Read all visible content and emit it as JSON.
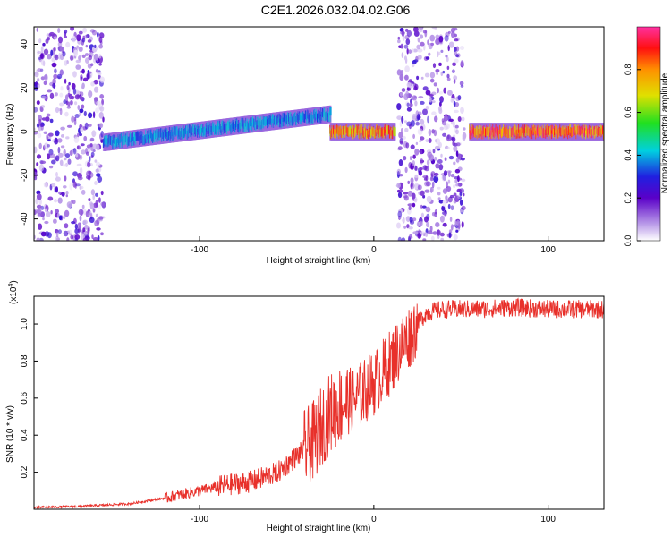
{
  "title": "C2E1.2026.032.04.02.G06",
  "colors": {
    "signal": "#e8302a",
    "axis": "#000000"
  },
  "charts": {
    "top": {
      "xlabel": "Height of straight line (km)",
      "ylabel": "Frequency (Hz)",
      "colorbar_label": "Normalized spectral amplitude",
      "xticks": [
        "-100",
        "0",
        "100"
      ],
      "yticks": [
        "40",
        "20",
        "0",
        "-20",
        "-40"
      ],
      "cticks": [
        "0.0",
        "0.2",
        "0.4",
        "0.6",
        "0.8"
      ]
    },
    "bottom": {
      "xlabel": "Height of straight line (km)",
      "ylabel": "SNR (10 * v/v)",
      "scale_label": "(x10",
      "scale_exp": "4",
      "scale_close": ")",
      "xticks": [
        "-100",
        "0",
        "100"
      ],
      "yticks": [
        "1.0",
        "0.8",
        "0.6",
        "0.4",
        "0.2"
      ]
    }
  },
  "chart_data": [
    {
      "type": "heatmap",
      "title": "C2E1.2026.032.04.02.G06",
      "xlabel": "Height of straight line (km)",
      "ylabel": "Frequency (Hz)",
      "xlim": [
        -195,
        132
      ],
      "ylim": [
        -50,
        48
      ],
      "colorbar": {
        "label": "Normalized spectral amplitude",
        "range": [
          0.0,
          1.0
        ],
        "ticks": [
          0.0,
          0.2,
          0.4,
          0.6,
          0.8
        ]
      },
      "features": [
        {
          "x_range": [
            -195,
            -155
          ],
          "kind": "noise",
          "amplitude": 0.1
        },
        {
          "x_range": [
            -155,
            -25
          ],
          "kind": "signal-band",
          "center_hz_start": -5,
          "center_hz_end": 8,
          "amplitude": 0.4
        },
        {
          "x_range": [
            -25,
            12
          ],
          "kind": "signal-band",
          "center_hz": 0,
          "amplitude": 0.85
        },
        {
          "x_range": [
            14,
            52
          ],
          "kind": "noise",
          "amplitude": 0.1
        },
        {
          "x_range": [
            55,
            132
          ],
          "kind": "signal-band",
          "center_hz": 0,
          "amplitude": 0.9
        }
      ]
    },
    {
      "type": "line",
      "title": "",
      "xlabel": "Height of straight line (km)",
      "ylabel": "SNR (10 * v/v)",
      "y_scale": 10000,
      "xlim": [
        -195,
        132
      ],
      "ylim": [
        0,
        1.15
      ],
      "series": [
        {
          "name": "SNR",
          "x": [
            -195,
            -170,
            -140,
            -120,
            -100,
            -85,
            -70,
            -55,
            -45,
            -35,
            -30,
            -25,
            -20,
            -15,
            -10,
            -5,
            0,
            5,
            10,
            15,
            20,
            25,
            30,
            40,
            60,
            80,
            100,
            120,
            132
          ],
          "y": [
            0.01,
            0.015,
            0.03,
            0.06,
            0.1,
            0.13,
            0.15,
            0.2,
            0.28,
            0.36,
            0.45,
            0.52,
            0.56,
            0.58,
            0.6,
            0.64,
            0.68,
            0.74,
            0.8,
            0.87,
            0.93,
            1.0,
            1.06,
            1.08,
            1.08,
            1.09,
            1.08,
            1.08,
            1.08
          ],
          "color": "#e8302a"
        }
      ]
    }
  ]
}
